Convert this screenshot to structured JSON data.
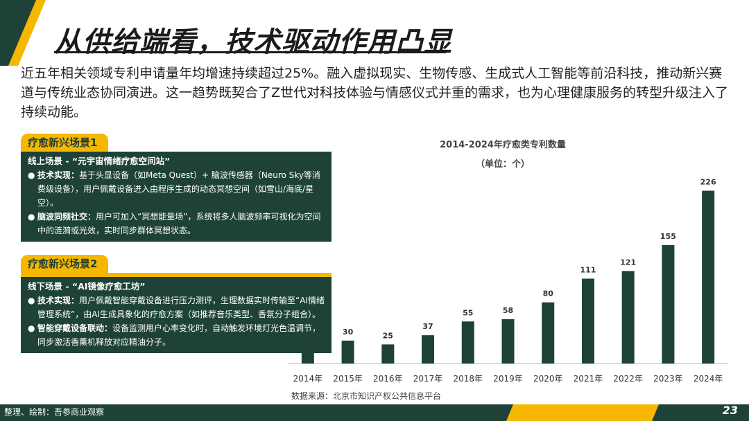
{
  "title": "从供给端看，技术驱动作用凸显",
  "intro": "近五年相关领域专利申请量年均增速持续超过25%。融入虚拟现实、生物传感、生成式人工智能等前沿科技，推动新兴赛道与传统业态协同演进。这一趋势既契合了Z世代对科技体验与情感仪式并重的需求，也为心理健康服务的转型升级注入了持续动能。",
  "colors": {
    "dark_green": "#1e4237",
    "accent_yellow": "#f5b700",
    "bar": "#1e4237"
  },
  "scenes": [
    {
      "tab": "疗愈新兴场景1",
      "subtitle": "线上场景 - “元宇宙情绪疗愈空间站”",
      "bullets": [
        {
          "key": "技术实现：",
          "text": "基于头显设备（如Meta Quest）+ 脑波传感器（Neuro Sky等消费级设备），用户佩戴设备进入由程序生成的动态冥想空间（如雪山/海底/星空）。"
        },
        {
          "key": "脑波同频社交：",
          "text": "用户可加入“冥想能量场”，系统将多人脑波频率可视化为空间中的涟漪或光效，实时同步群体冥想状态。"
        }
      ]
    },
    {
      "tab": "疗愈新兴场景2",
      "subtitle": "线下场景 - “AI镜像疗愈工坊”",
      "bullets": [
        {
          "key": "技术实现：",
          "text": "用户佩戴智能穿戴设备进行压力测评，生理数据实时传输至“AI情绪管理系统”，由AI生成具象化的疗愈方案（如推荐音乐类型、香氛分子组合）。"
        },
        {
          "key": "智能穿戴设备联动：",
          "text": "设备监测用户心率变化时，自动触发环境灯光色温调节，同步激活香薰机释放对应精油分子。"
        }
      ]
    }
  ],
  "chart_data": {
    "type": "bar",
    "title": "2014-2024年疗愈类专利数量",
    "unit": "（单位：个）",
    "categories": [
      "2014年",
      "2015年",
      "2016年",
      "2017年",
      "2018年",
      "2019年",
      "2020年",
      "2021年",
      "2022年",
      "2023年",
      "2024年"
    ],
    "values": [
      14,
      30,
      25,
      37,
      55,
      58,
      80,
      111,
      121,
      155,
      226
    ],
    "ylim": [
      0,
      240
    ],
    "grid": false,
    "legend": "none"
  },
  "source": "数据来源：北京市知识产权公共信息平台",
  "footer": {
    "credit": "整理、绘制：吾参商业观察",
    "page": "23"
  }
}
